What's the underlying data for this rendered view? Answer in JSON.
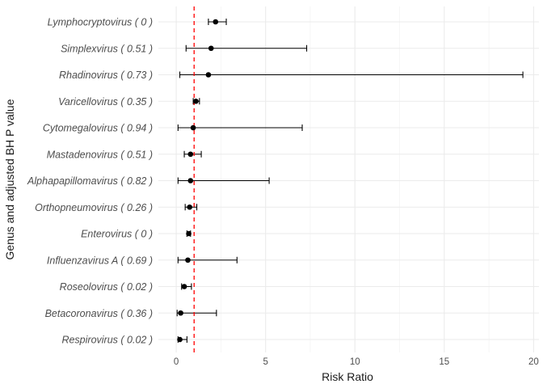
{
  "chart_data": {
    "type": "forest",
    "title": "",
    "xlabel": "Risk Ratio",
    "ylabel": "Genus and adjusted BH P value",
    "xlim": [
      -1,
      20.3
    ],
    "xticks": [
      0,
      5,
      10,
      15,
      20
    ],
    "reference_line": {
      "x": 1,
      "style": "dashed",
      "color": "#ff0000"
    },
    "grid": true,
    "point_color": "#000000",
    "rows": [
      {
        "label": "Lymphocryptovirus ( 0 )",
        "rr": 2.2,
        "lo": 1.8,
        "hi": 2.8
      },
      {
        "label": "Simplexvirus ( 0.51 )",
        "rr": 1.95,
        "lo": 0.55,
        "hi": 7.3
      },
      {
        "label": "Rhadinovirus ( 0.73 )",
        "rr": 1.8,
        "lo": 0.2,
        "hi": 19.4
      },
      {
        "label": "Varicellovirus ( 0.35 )",
        "rr": 1.1,
        "lo": 0.95,
        "hi": 1.3
      },
      {
        "label": "Cytomegalovirus ( 0.94 )",
        "rr": 0.95,
        "lo": 0.1,
        "hi": 7.05
      },
      {
        "label": "Mastadenovirus ( 0.51 )",
        "rr": 0.8,
        "lo": 0.45,
        "hi": 1.4
      },
      {
        "label": "Alphapapillomavirus ( 0.82 )",
        "rr": 0.8,
        "lo": 0.1,
        "hi": 5.2
      },
      {
        "label": "Orthopneumovirus ( 0.26 )",
        "rr": 0.75,
        "lo": 0.5,
        "hi": 1.15
      },
      {
        "label": "Enterovirus ( 0 )",
        "rr": 0.7,
        "lo": 0.6,
        "hi": 0.8
      },
      {
        "label": "Influenzavirus A ( 0.69 )",
        "rr": 0.65,
        "lo": 0.1,
        "hi": 3.4
      },
      {
        "label": "Roseolovirus ( 0.02 )",
        "rr": 0.45,
        "lo": 0.3,
        "hi": 0.85
      },
      {
        "label": "Betacoronavirus ( 0.36 )",
        "rr": 0.25,
        "lo": 0.05,
        "hi": 2.25
      },
      {
        "label": "Respirovirus ( 0.02 )",
        "rr": 0.2,
        "lo": 0.1,
        "hi": 0.6
      }
    ]
  }
}
